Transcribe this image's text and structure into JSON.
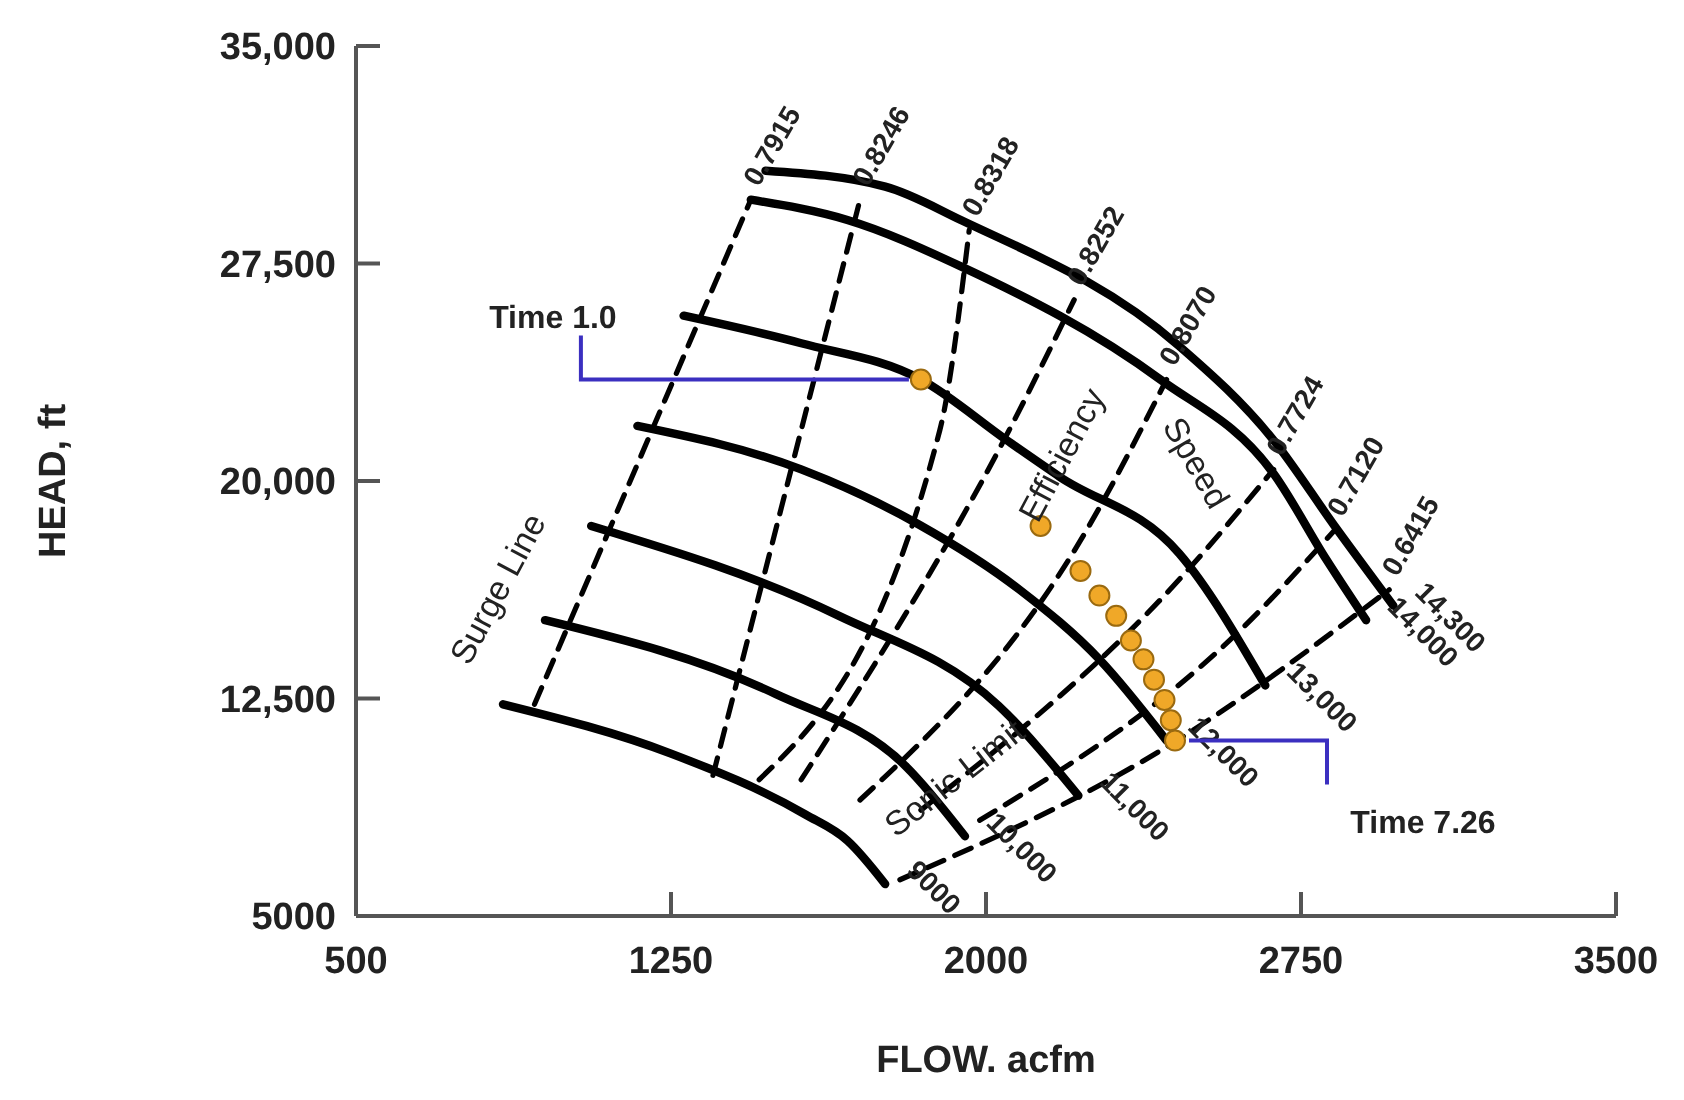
{
  "chart_data": {
    "type": "line",
    "xlabel": "FLOW. acfm",
    "ylabel": "HEAD, ft",
    "xlim": [
      500,
      3500
    ],
    "xticks": [
      500,
      1250,
      2000,
      2750,
      3500
    ],
    "ylim": [
      5000,
      35000
    ],
    "yticks": [
      5000,
      {
        "value": 12500,
        "label": "12,500"
      },
      {
        "value": 20000,
        "label": "20,000"
      },
      {
        "value": 27500,
        "label": "27,500"
      },
      {
        "value": 35000,
        "label": "35,000"
      }
    ],
    "grid": false,
    "legend": false,
    "series": [
      {
        "name": "9000",
        "line_style": "solid",
        "color": "#000000",
        "x": [
          850,
          1250,
          1570,
          1670,
          1760
        ],
        "values": [
          12300,
          10600,
          8500,
          7600,
          6100
        ]
      },
      {
        "name": "10,000",
        "line_style": "solid",
        "color": "#000000",
        "x": [
          950,
          1500,
          1810,
          1950
        ],
        "values": [
          15200,
          12650,
          10150,
          7750
        ]
      },
      {
        "name": "11,000",
        "line_style": "solid",
        "color": "#000000",
        "x": [
          1060,
          1650,
          2030,
          2220
        ],
        "values": [
          18450,
          15350,
          12250,
          9150
        ]
      },
      {
        "name": "12,000",
        "line_style": "solid",
        "color": "#000000",
        "x": [
          1170,
          1560,
          1840,
          2080,
          2270,
          2430
        ],
        "values": [
          21900,
          20400,
          18500,
          16250,
          13850,
          11050
        ]
      },
      {
        "name": "13,000",
        "line_style": "solid",
        "color": "#000000",
        "x": [
          1280,
          1560,
          1845,
          2050,
          2175,
          2460,
          2665
        ],
        "values": [
          25700,
          24750,
          23500,
          21400,
          20150,
          17500,
          12950
        ]
      },
      {
        "name": "14,000",
        "line_style": "solid",
        "color": "#000000",
        "x": [
          1440,
          1670,
          1940,
          2415,
          2685,
          2810,
          2905
        ],
        "values": [
          29700,
          29000,
          27400,
          23500,
          20250,
          17300,
          15200
        ]
      },
      {
        "name": "14,300",
        "line_style": "solid",
        "color": "#000000",
        "x": [
          1475,
          1760,
          1940,
          2460,
          2685,
          2830,
          2970
        ],
        "values": [
          30700,
          30150,
          29000,
          24650,
          21400,
          18450,
          15700
        ]
      },
      {
        "name": "0.7915",
        "line_style": "dashed",
        "color": "#000000",
        "x": [
          925,
          1440
        ],
        "values": [
          12300,
          29700
        ]
      },
      {
        "name": "0.8246",
        "line_style": "dashed",
        "color": "#000000",
        "x": [
          1350,
          1700
        ],
        "values": [
          9850,
          29700
        ]
      },
      {
        "name": "0.8318",
        "line_style": "dashed",
        "color": "#000000",
        "x": [
          1460,
          1890,
          1960
        ],
        "values": [
          9700,
          21750,
          28650
        ]
      },
      {
        "name": "0.8252",
        "line_style": "dashed",
        "color": "#000000",
        "x": [
          1560,
          2055,
          2210
        ],
        "values": [
          9700,
          21750,
          26250
        ]
      },
      {
        "name": "0.8070",
        "line_style": "dashed",
        "color": "#000000",
        "x": [
          1700,
          2225,
          2430
        ],
        "values": [
          9000,
          17950,
          23500
        ]
      },
      {
        "name": "0.7724",
        "line_style": "dashed",
        "color": "#000000",
        "x": [
          1845,
          2460,
          2685
        ],
        "values": [
          8650,
          16600,
          20400
        ]
      },
      {
        "name": "0.7120",
        "line_style": "dashed",
        "color": "#000000",
        "x": [
          1985,
          2605,
          2830
        ],
        "values": [
          8300,
          14850,
          18300
        ]
      },
      {
        "name": "0.6415",
        "line_style": "dashed",
        "color": "#000000",
        "x": [
          1795,
          2415,
          2960
        ],
        "values": [
          6250,
          10700,
          16250
        ]
      },
      {
        "type": "scatter",
        "marker": "circle",
        "color": "#f0a828",
        "x": [
          1845,
          2130,
          2225,
          2270,
          2310,
          2345,
          2375,
          2400,
          2425,
          2440,
          2450
        ],
        "values": [
          23500,
          18450,
          16900,
          16050,
          15350,
          14500,
          13850,
          13150,
          12450,
          11750,
          11050
        ]
      }
    ],
    "annotations": [
      "Surge Line",
      "Efficiency",
      "Speed",
      "Sonic Limit",
      {
        "text": "Time 1.0",
        "x": 1845,
        "y": 23500
      },
      {
        "text": "Time 7.26",
        "x": 2450,
        "y": 11050
      }
    ]
  }
}
